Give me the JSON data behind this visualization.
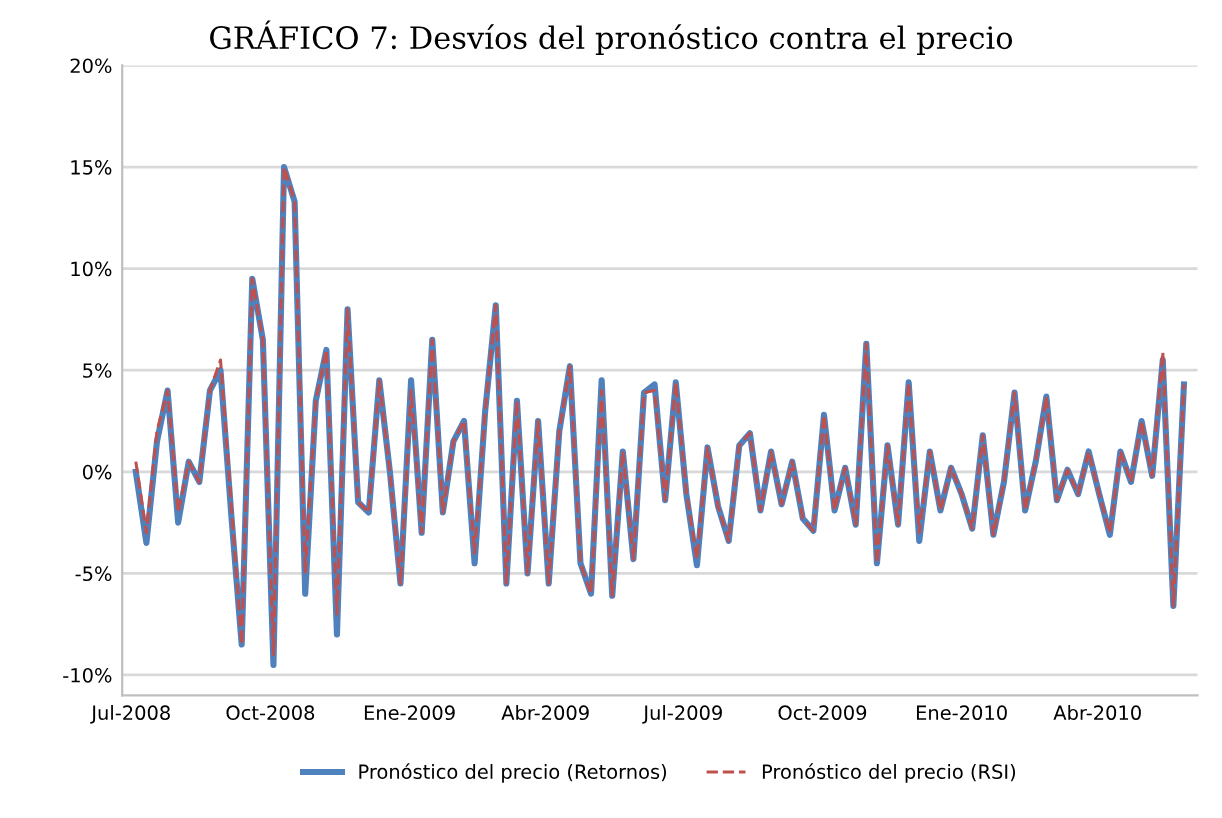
{
  "chart_data": {
    "type": "line",
    "title": "GRÁFICO 7: Desvíos del pronóstico contra el precio",
    "x": [
      "2008-07-04",
      "2008-07-11",
      "2008-07-18",
      "2008-07-25",
      "2008-08-01",
      "2008-08-08",
      "2008-08-15",
      "2008-08-22",
      "2008-08-29",
      "2008-09-05",
      "2008-09-12",
      "2008-09-19",
      "2008-09-26",
      "2008-10-03",
      "2008-10-10",
      "2008-10-17",
      "2008-10-24",
      "2008-10-31",
      "2008-11-07",
      "2008-11-14",
      "2008-11-21",
      "2008-11-28",
      "2008-12-05",
      "2008-12-12",
      "2008-12-19",
      "2008-12-26",
      "2009-01-02",
      "2009-01-09",
      "2009-01-16",
      "2009-01-23",
      "2009-01-30",
      "2009-02-06",
      "2009-02-13",
      "2009-02-20",
      "2009-02-27",
      "2009-03-06",
      "2009-03-13",
      "2009-03-20",
      "2009-03-27",
      "2009-04-03",
      "2009-04-10",
      "2009-04-17",
      "2009-04-24",
      "2009-05-01",
      "2009-05-08",
      "2009-05-15",
      "2009-05-22",
      "2009-05-29",
      "2009-06-05",
      "2009-06-12",
      "2009-06-19",
      "2009-06-26",
      "2009-07-03",
      "2009-07-10",
      "2009-07-17",
      "2009-07-24",
      "2009-07-31",
      "2009-08-07",
      "2009-08-14",
      "2009-08-21",
      "2009-08-28",
      "2009-09-04",
      "2009-09-11",
      "2009-09-18",
      "2009-09-25",
      "2009-10-02",
      "2009-10-09",
      "2009-10-16",
      "2009-10-23",
      "2009-10-30",
      "2009-11-06",
      "2009-11-13",
      "2009-11-20",
      "2009-11-27",
      "2009-12-04",
      "2009-12-11",
      "2009-12-18",
      "2009-12-25",
      "2010-01-01",
      "2010-01-08",
      "2010-01-15",
      "2010-01-22",
      "2010-01-29",
      "2010-02-05",
      "2010-02-12",
      "2010-02-19",
      "2010-02-26",
      "2010-03-05",
      "2010-03-12",
      "2010-03-19",
      "2010-03-26",
      "2010-04-02",
      "2010-04-09",
      "2010-04-16",
      "2010-04-23",
      "2010-04-30",
      "2010-05-07",
      "2010-05-14",
      "2010-05-21",
      "2010-05-28"
    ],
    "series": [
      {
        "name": "Pronóstico del precio (Retornos)",
        "color": "#4f81bd",
        "line_style": "solid",
        "values": [
          0,
          -3.5,
          1.5,
          4,
          -2.5,
          0.5,
          -0.5,
          4,
          5,
          -2,
          -8.5,
          9.5,
          6.5,
          -9.5,
          15,
          13.3,
          -6,
          3.5,
          6,
          -8,
          8,
          -1.5,
          -2,
          4.5,
          0,
          -5.5,
          4.5,
          -3,
          6.5,
          -2,
          1.5,
          2.5,
          -4.5,
          3,
          8.2,
          -5.5,
          3.5,
          -5,
          2.5,
          -5.5,
          2,
          5.2,
          -4.5,
          -6,
          4.5,
          -6.1,
          1,
          -4.3,
          3.9,
          4.3,
          -1.4,
          4.4,
          -1.1,
          -4.6,
          1.2,
          -1.7,
          -3.4,
          1.3,
          1.9,
          -1.9,
          1,
          -1.6,
          0.5,
          -2.3,
          -2.9,
          2.8,
          -1.9,
          0.2,
          -2.6,
          6.3,
          -4.5,
          1.3,
          -2.6,
          4.4,
          -3.4,
          1,
          -1.9,
          0.2,
          -1.1,
          -2.8,
          1.8,
          -3.1,
          -0.5,
          3.9,
          -1.9,
          0.5,
          3.7,
          -1.4,
          0.1,
          -1.1,
          1,
          -1.1,
          -3.1,
          1,
          -0.5,
          2.5,
          -0.2,
          5.5,
          -6.6,
          4.3
        ]
      },
      {
        "name": "Pronóstico del precio (RSI)",
        "color": "#c0504d",
        "line_style": "dashed",
        "values": [
          0.5,
          -3,
          2,
          4,
          -2,
          0.5,
          -0.5,
          4,
          5.5,
          -1.5,
          -8.5,
          9.5,
          6.5,
          -9,
          15,
          13.3,
          -5,
          3.5,
          6,
          -7,
          8,
          -1.5,
          -2,
          4.5,
          0,
          -5.5,
          4,
          -3,
          6.5,
          -2,
          1.5,
          2.5,
          -4,
          3,
          8.2,
          -5.5,
          3.5,
          -5,
          2.5,
          -5.5,
          2,
          5.2,
          -4.5,
          -6,
          4,
          -6.1,
          1,
          -4.3,
          3.9,
          4,
          -1.4,
          4.4,
          -1,
          -4.3,
          1.2,
          -1.7,
          -3.4,
          1.3,
          1.9,
          -1.9,
          1,
          -1.6,
          0.5,
          -2.3,
          -2.9,
          2.8,
          -1.9,
          0.2,
          -2.6,
          6.3,
          -4.5,
          1.3,
          -2.6,
          4.4,
          -3,
          1,
          -1.9,
          0.2,
          -1.1,
          -2.8,
          1.8,
          -3.1,
          -0.5,
          3.9,
          -1.9,
          0.5,
          3.7,
          -1.4,
          0.1,
          -1.1,
          1,
          -1.1,
          -3,
          1,
          -0.5,
          2.5,
          -0.2,
          5.9,
          -6.6,
          4.3
        ]
      }
    ],
    "xlim": [
      "2008-06-25",
      "2010-06-06"
    ],
    "xticks": [
      {
        "value": "2008-07-01",
        "label": "Jul-2008"
      },
      {
        "value": "2008-10-01",
        "label": "Oct-2008"
      },
      {
        "value": "2009-01-01",
        "label": "Ene-2009"
      },
      {
        "value": "2009-04-01",
        "label": "Abr-2009"
      },
      {
        "value": "2009-07-01",
        "label": "Jul-2009"
      },
      {
        "value": "2009-10-01",
        "label": "Oct-2009"
      },
      {
        "value": "2010-01-01",
        "label": "Ene-2010"
      },
      {
        "value": "2010-04-01",
        "label": "Abr-2010"
      }
    ],
    "ylim": [
      -11,
      20
    ],
    "yticks": [
      {
        "value": -10,
        "label": "-10%"
      },
      {
        "value": -5,
        "label": "-5%"
      },
      {
        "value": 0,
        "label": "0%"
      },
      {
        "value": 5,
        "label": "5%"
      },
      {
        "value": 10,
        "label": "10%"
      },
      {
        "value": 15,
        "label": "15%"
      },
      {
        "value": 20,
        "label": "20%"
      }
    ],
    "grid": "y",
    "legend": "bottom",
    "marker": "none"
  }
}
